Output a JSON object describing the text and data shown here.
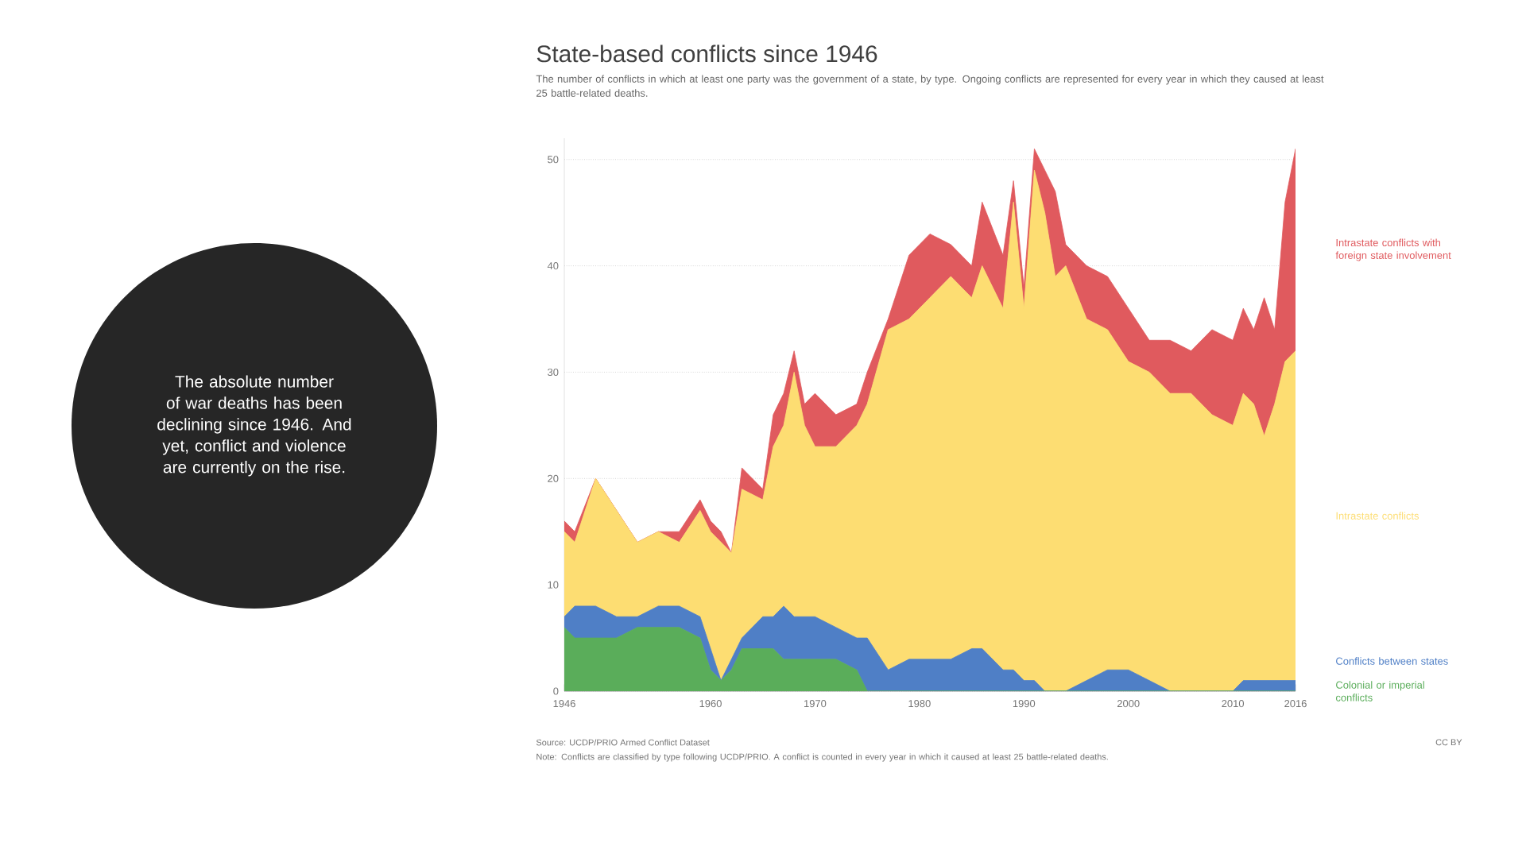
{
  "chart_data": {
    "type": "area",
    "stacked": true,
    "title": "State-based conflicts since 1946",
    "subtitle": "The number of conflicts in which at least one party was the government of a state, by type. Ongoing conflicts are represented for every year in which they caused at least 25 battle-related deaths.",
    "x": [
      1946,
      1947,
      1949,
      1951,
      1953,
      1955,
      1957,
      1959,
      1960,
      1961,
      1962,
      1963,
      1965,
      1966,
      1967,
      1968,
      1969,
      1970,
      1972,
      1974,
      1975,
      1977,
      1979,
      1981,
      1983,
      1985,
      1986,
      1988,
      1989,
      1990,
      1991,
      1992,
      1993,
      1994,
      1996,
      1998,
      2000,
      2002,
      2004,
      2006,
      2008,
      2010,
      2011,
      2012,
      2013,
      2014,
      2015,
      2016
    ],
    "series": [
      {
        "name": "Colonial or imperial conflicts",
        "color": "#5aad5a",
        "values": [
          6,
          5,
          5,
          5,
          6,
          6,
          6,
          5,
          2,
          1,
          2,
          4,
          4,
          4,
          3,
          3,
          3,
          3,
          3,
          2,
          0,
          0,
          0,
          0,
          0,
          0,
          0,
          0,
          0,
          0,
          0,
          0,
          0,
          0,
          0,
          0,
          0,
          0,
          0,
          0,
          0,
          0,
          0,
          0,
          0,
          0,
          0,
          0
        ]
      },
      {
        "name": "Conflicts between states",
        "color": "#4f7fc6",
        "values": [
          1,
          3,
          3,
          2,
          1,
          2,
          2,
          2,
          2,
          0,
          1,
          1,
          3,
          3,
          5,
          4,
          4,
          4,
          3,
          3,
          5,
          2,
          3,
          3,
          3,
          4,
          4,
          2,
          2,
          1,
          1,
          0,
          0,
          0,
          1,
          2,
          2,
          1,
          0,
          0,
          0,
          0,
          1,
          1,
          1,
          1,
          1,
          1
        ]
      },
      {
        "name": "Intrastate conflicts",
        "color": "#fddd72",
        "values": [
          8,
          6,
          12,
          10,
          7,
          7,
          6,
          10,
          11,
          13,
          10,
          14,
          11,
          16,
          17,
          23,
          18,
          16,
          17,
          20,
          22,
          32,
          32,
          34,
          36,
          33,
          36,
          34,
          44,
          35,
          48,
          45,
          39,
          40,
          34,
          32,
          29,
          29,
          28,
          28,
          26,
          25,
          27,
          26,
          23,
          26,
          30,
          31
        ]
      },
      {
        "name": "Intrastate conflicts with foreign state involvement",
        "color": "#e05a5e",
        "values": [
          1,
          1,
          0,
          0,
          0,
          0,
          1,
          1,
          1,
          1,
          0,
          2,
          1,
          3,
          3,
          2,
          2,
          5,
          3,
          2,
          3,
          1,
          6,
          6,
          3,
          3,
          6,
          5,
          2,
          2,
          2,
          4,
          8,
          2,
          5,
          5,
          5,
          3,
          5,
          4,
          8,
          8,
          8,
          7,
          13,
          7,
          15,
          19
        ]
      }
    ],
    "xlim": [
      1946,
      2016
    ],
    "ylim": [
      0,
      52
    ],
    "xticks": [
      1946,
      1960,
      1970,
      1980,
      1990,
      2000,
      2010,
      2016
    ],
    "yticks": [
      0,
      10,
      20,
      30,
      40,
      50
    ],
    "grid": "y",
    "legend": "right",
    "annotations": [
      "The absolute number of war deaths has been declining since 1946. And yet, conflict and violence are currently on the rise.",
      "Source: UCDP/PRIO Armed Conflict Dataset",
      "Note: Conflicts are classified by type following UCDP/PRIO. A conflict is counted in every year in which it caused at least 25 battle-related deaths.",
      "CC BY"
    ]
  }
}
